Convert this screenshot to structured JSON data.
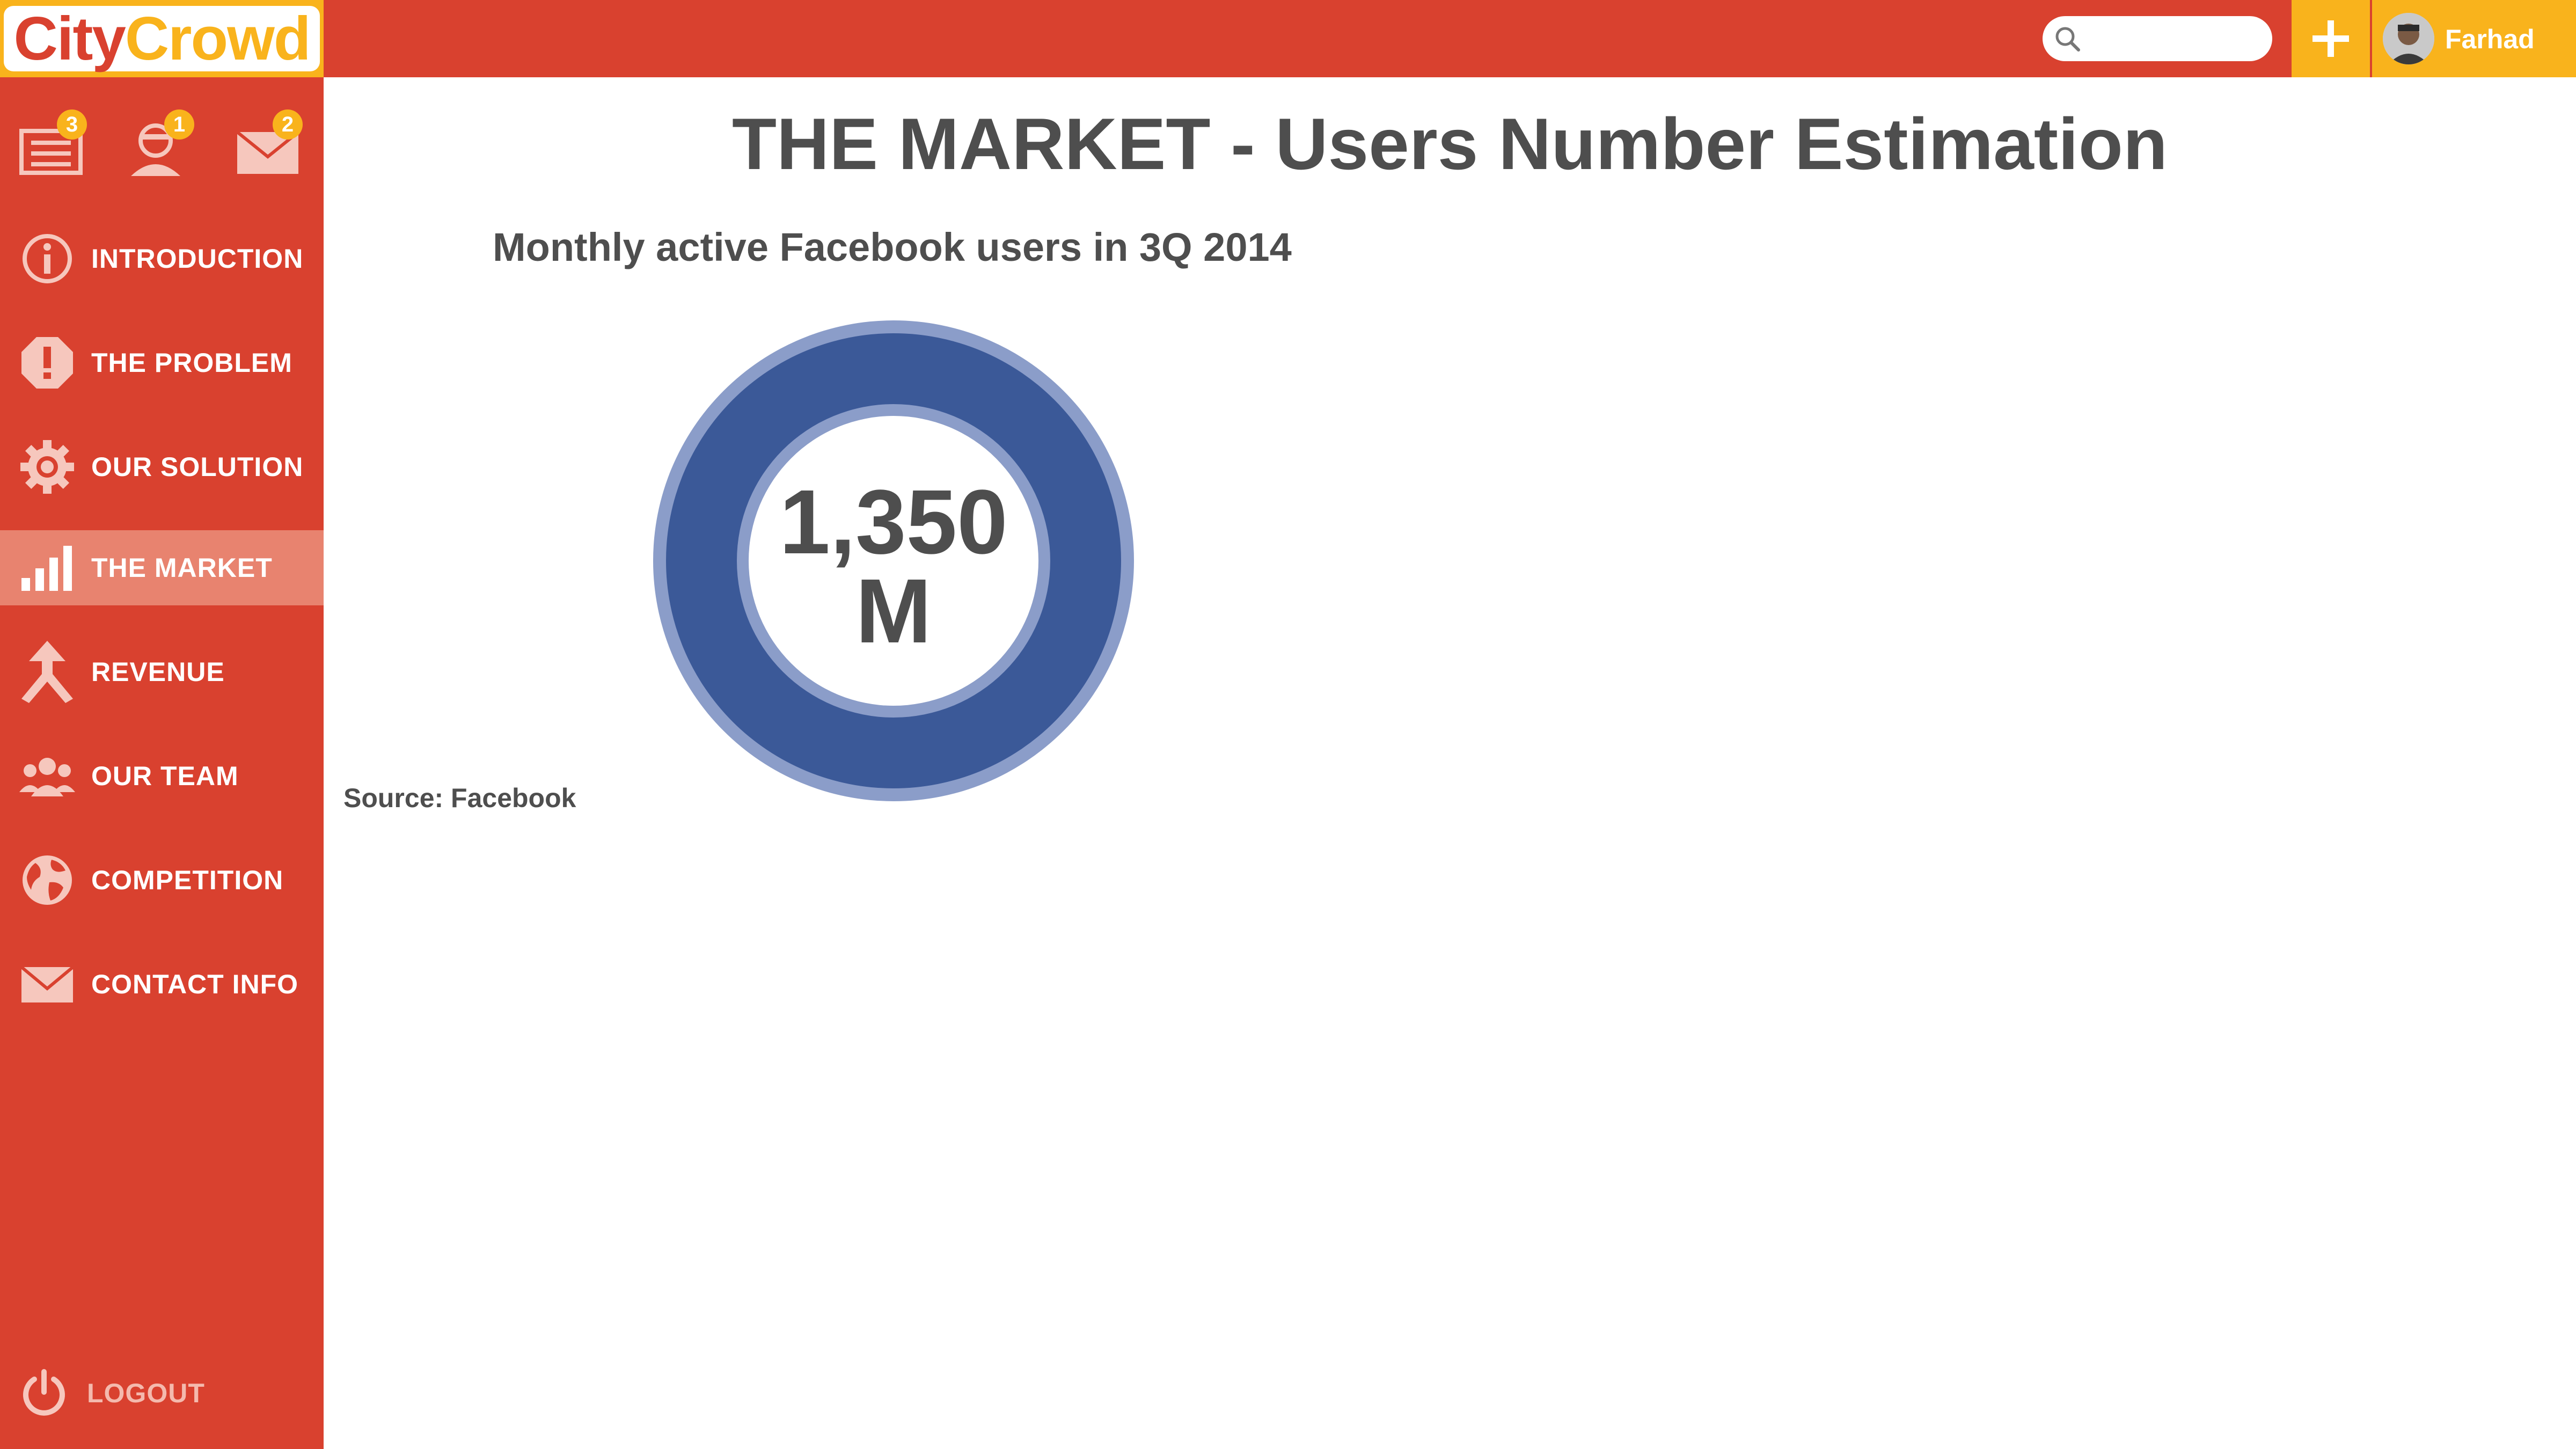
{
  "app": {
    "logo_part1": "City",
    "logo_part2": "Crowd"
  },
  "header": {
    "search_placeholder": "",
    "user_name": "Farhad",
    "colors": {
      "bar": "#d9412f",
      "accent": "#f9b31c"
    }
  },
  "notifications": [
    {
      "icon": "inbox-icon",
      "count": "3"
    },
    {
      "icon": "user-icon",
      "count": "1"
    },
    {
      "icon": "mail-icon",
      "count": "2"
    }
  ],
  "sidebar": {
    "items": [
      {
        "label": "INTRODUCTION",
        "icon": "info-icon"
      },
      {
        "label": "THE PROBLEM",
        "icon": "alert-icon"
      },
      {
        "label": "OUR SOLUTION",
        "icon": "gear-icon"
      },
      {
        "label": "THE MARKET",
        "icon": "bar-chart-icon",
        "active": true
      },
      {
        "label": "REVENUE",
        "icon": "merge-arrow-icon"
      },
      {
        "label": "OUR TEAM",
        "icon": "team-icon"
      },
      {
        "label": "COMPETITION",
        "icon": "globe-icon"
      },
      {
        "label": "CONTACT INFO",
        "icon": "envelope-icon"
      }
    ],
    "logout_label": "LOGOUT"
  },
  "main": {
    "title": "THE MARKET - Users Number Estimation",
    "subtitle": "Monthly active Facebook users in 3Q 2014",
    "source": "Source: Facebook"
  },
  "chart_data": {
    "type": "pie",
    "title": "Monthly active Facebook users in 3Q 2014",
    "center_value_line1": "1,350",
    "center_value_line2": "M",
    "values": [
      1350
    ],
    "colors": {
      "ring": "#3b5998",
      "ring_border": "#8b9dc9"
    }
  }
}
